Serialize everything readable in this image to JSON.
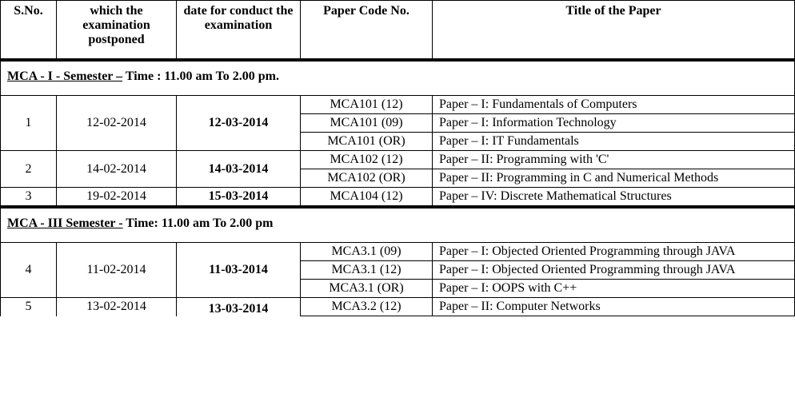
{
  "headers": {
    "sno": "S.No.",
    "old_date": "which the examination postponed",
    "new_date": "date for conduct the examination",
    "paper_code": "Paper Code No.",
    "title": "Title of the Paper"
  },
  "sections": [
    {
      "label": "MCA - I -  Semester –",
      "time": " Time : 11.00 am To 2.00 pm.",
      "blocks": [
        {
          "sno": "1",
          "old_date": "12-02-2014",
          "new_date": "12-03-2014",
          "rows": [
            {
              "code": "MCA101 (12)",
              "title": "Paper – I: Fundamentals of Computers"
            },
            {
              "code": "MCA101 (09)",
              "title": "Paper – I: Information Technology"
            },
            {
              "code": "MCA101 (OR)",
              "title": "Paper – I: IT Fundamentals"
            }
          ]
        },
        {
          "sno": "2",
          "old_date": "14-02-2014",
          "new_date": "14-03-2014",
          "rows": [
            {
              "code": "MCA102 (12)",
              "title": "Paper – II: Programming with 'C'"
            },
            {
              "code": "MCA102 (OR)",
              "title": "Paper – II: Programming in C and Numerical Methods"
            }
          ]
        },
        {
          "sno": "3",
          "old_date": "19-02-2014",
          "new_date": "15-03-2014",
          "rows": [
            {
              "code": "MCA104 (12)",
              "title": "Paper – IV: Discrete Mathematical Structures"
            }
          ]
        }
      ]
    },
    {
      "label": "MCA - III    Semester -",
      "time": "  Time: 11.00 am To 2.00 pm",
      "blocks": [
        {
          "sno": "4",
          "old_date": "11-02-2014",
          "new_date": "11-03-2014",
          "rows": [
            {
              "code": "MCA3.1 (09)",
              "title": "Paper – I: Objected Oriented Programming through JAVA"
            },
            {
              "code": "MCA3.1 (12)",
              "title": "Paper – I: Objected Oriented Programming through JAVA"
            },
            {
              "code": "MCA3.1 (OR)",
              "title": "Paper – I: OOPS with C++"
            }
          ]
        },
        {
          "sno": "5",
          "old_date": "13-02-2014",
          "new_date": "13-03-2014",
          "rows": [
            {
              "code": "MCA3.2 (12)",
              "title": "Paper – II: Computer Networks"
            }
          ]
        }
      ]
    }
  ]
}
